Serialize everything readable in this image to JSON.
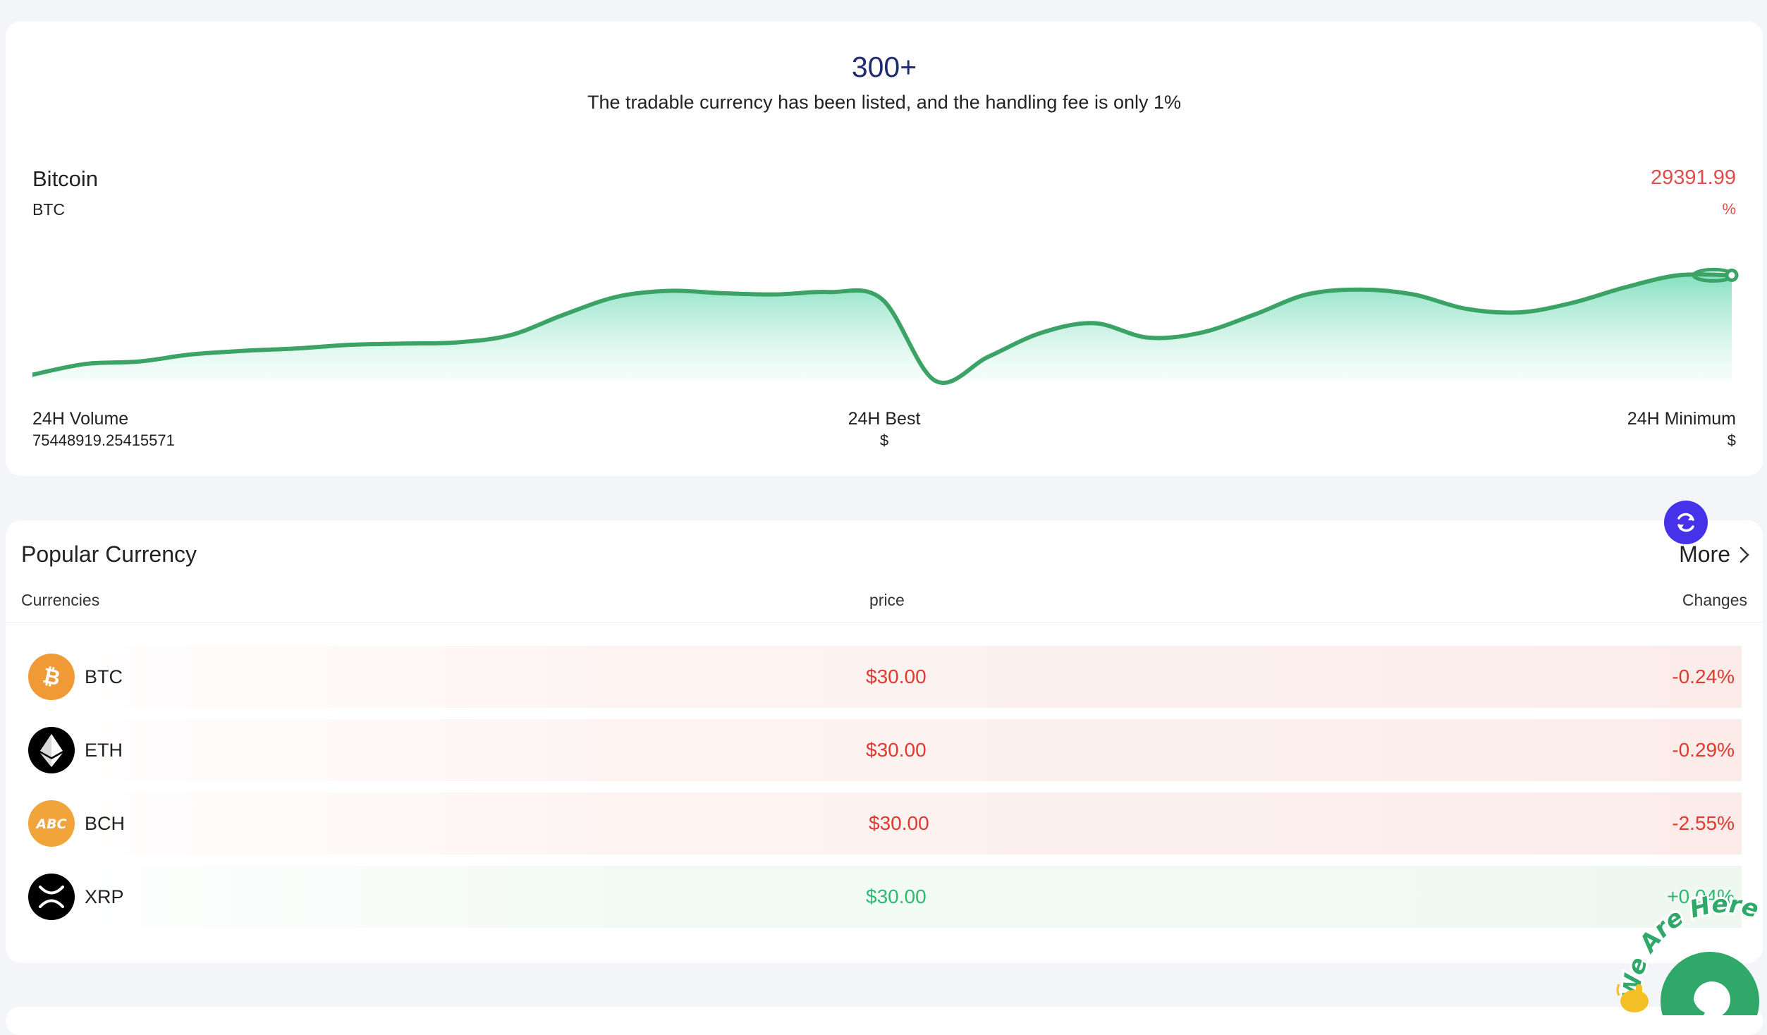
{
  "hero": {
    "count": "300+",
    "subtitle": "The tradable currency has been listed, and the handling fee is only 1%"
  },
  "ticker": {
    "name": "Bitcoin",
    "symbol": "BTC",
    "price": "29391.99",
    "change": "%",
    "colors": {
      "line": "#3aa365",
      "fill": "#7fe0bf",
      "down": "#e04b4b"
    }
  },
  "chart_data": {
    "type": "area",
    "title": "",
    "xlabel": "",
    "ylabel": "",
    "grid": false,
    "legend": "none",
    "values": [
      0.05,
      0.14,
      0.16,
      0.22,
      0.25,
      0.27,
      0.3,
      0.31,
      0.32,
      0.38,
      0.55,
      0.7,
      0.75,
      0.73,
      0.72,
      0.74,
      0.68,
      0.0,
      0.2,
      0.4,
      0.48,
      0.36,
      0.4,
      0.55,
      0.72,
      0.76,
      0.72,
      0.6,
      0.57,
      0.65,
      0.78,
      0.88,
      0.88
    ]
  },
  "stats": {
    "volume_label": "24H Volume",
    "volume_value": "75448919.25415571",
    "best_label": "24H Best",
    "best_value": "$",
    "min_label": "24H Minimum",
    "min_value": "$"
  },
  "popular": {
    "title": "Popular Currency",
    "more_label": "More",
    "col_currencies": "Currencies",
    "col_price": "price",
    "col_changes": "Changes",
    "rows": [
      {
        "symbol": "BTC",
        "price": "$30.00",
        "change": "-0.24%",
        "direction": "down",
        "icon": "bitcoin-icon",
        "icon_color": "#f7931a"
      },
      {
        "symbol": "ETH",
        "price": "$30.00",
        "change": "-0.29%",
        "direction": "down",
        "icon": "ethereum-icon",
        "icon_color": "#000000"
      },
      {
        "symbol": "BCH",
        "price": "$30.00",
        "change": "-2.55%",
        "direction": "down",
        "icon": "bitcoin-cash-abc-icon",
        "icon_color": "#f0a43a"
      },
      {
        "symbol": "XRP",
        "price": "$30.00",
        "change": "+0.04%",
        "direction": "up",
        "icon": "xrp-icon",
        "icon_color": "#000000"
      }
    ]
  },
  "widgets": {
    "chat_badge": "We Are Here",
    "refresh_icon": "refresh-icon",
    "chat_icon": "chat-bubble-icon"
  }
}
